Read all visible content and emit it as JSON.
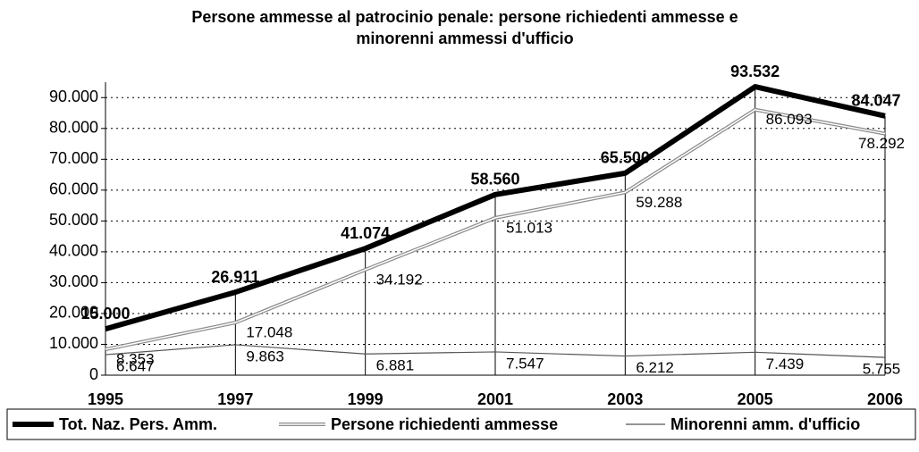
{
  "chart_data": {
    "type": "line",
    "title": [
      "Persone ammesse al patrocinio penale: persone richiedenti ammesse e",
      "minorenni ammessi d'ufficio"
    ],
    "categories": [
      "1995",
      "1997",
      "1999",
      "2001",
      "2003",
      "2005",
      "2006"
    ],
    "series": [
      {
        "name": "Tot. Naz. Pers. Amm.",
        "color": "#000000",
        "values": [
          15000,
          26911,
          41074,
          58560,
          65500,
          93532,
          84047
        ],
        "value_labels": [
          "15.000",
          "26.911",
          "41.074",
          "58.560",
          "65.500",
          "93.532",
          "84.047"
        ]
      },
      {
        "name": "Persone richiedenti ammesse",
        "color": "#8c8c8c",
        "values": [
          8353,
          17048,
          34192,
          51013,
          59288,
          86093,
          78292
        ],
        "value_labels": [
          "8.353",
          "17.048",
          "34.192",
          "51.013",
          "59.288",
          "86.093",
          "78.292"
        ]
      },
      {
        "name": "Minorenni amm. d'ufficio",
        "color": "#555555",
        "values": [
          6647,
          9863,
          6881,
          7547,
          6212,
          7439,
          5755
        ],
        "value_labels": [
          "6.647",
          "9.863",
          "6.881",
          "7.547",
          "6.212",
          "7.439",
          "5.755"
        ]
      }
    ],
    "ylim": [
      0,
      95000
    ],
    "yticks": [
      0,
      {
        "value": 10000,
        "label": "10.000"
      },
      {
        "value": 20000,
        "label": "20.000"
      },
      {
        "value": 30000,
        "label": "30.000"
      },
      {
        "value": 40000,
        "label": "40.000"
      },
      {
        "value": 50000,
        "label": "50.000"
      },
      {
        "value": 60000,
        "label": "60.000"
      },
      {
        "value": 70000,
        "label": "70.000"
      },
      {
        "value": 80000,
        "label": "80.000"
      },
      {
        "value": 90000,
        "label": "90.000"
      }
    ],
    "grid": true,
    "legend": "bottom"
  }
}
